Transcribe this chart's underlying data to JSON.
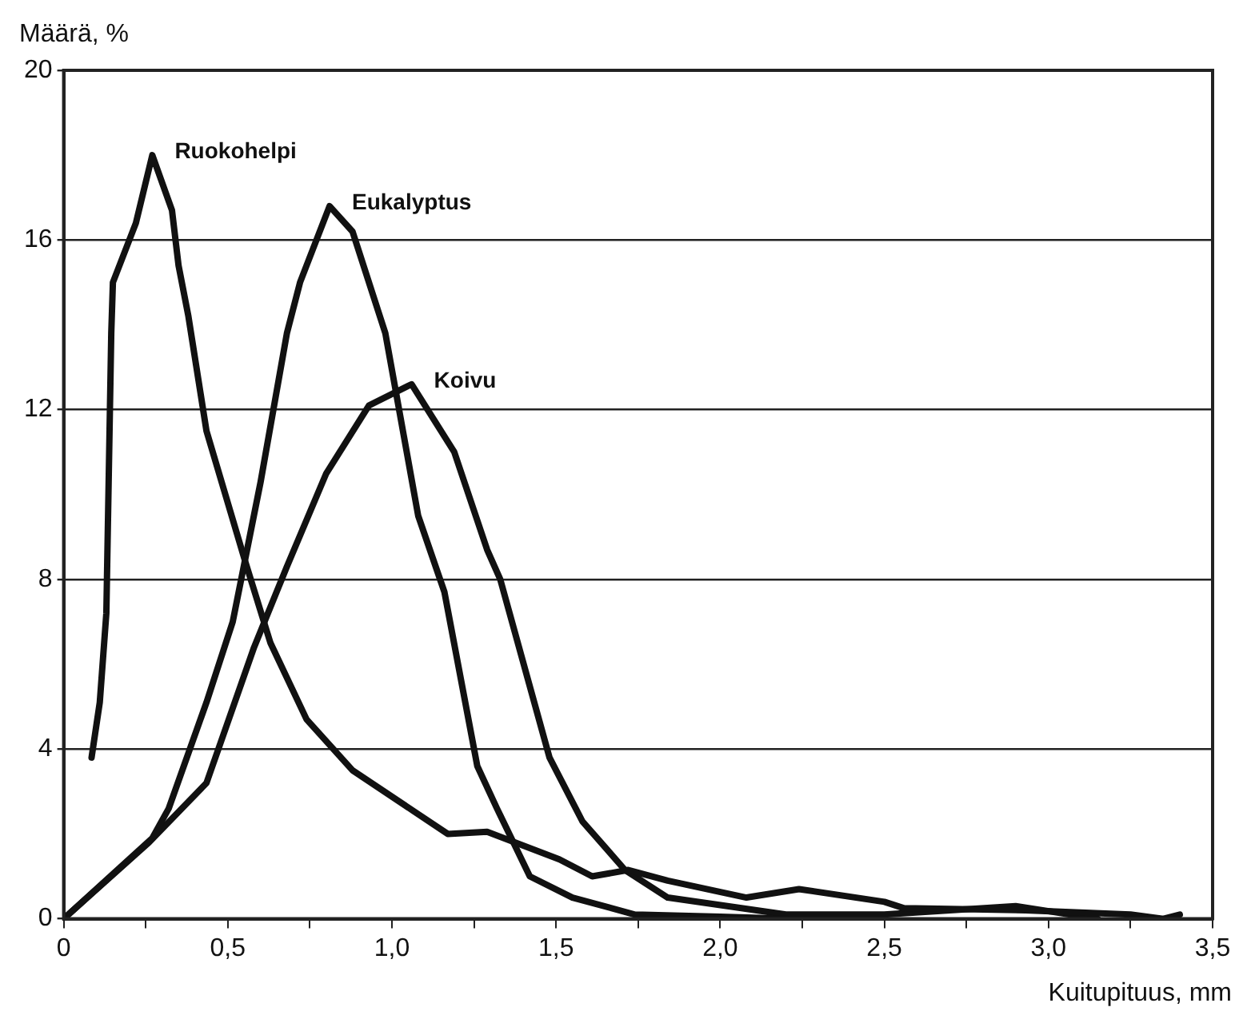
{
  "chart_data": {
    "type": "line",
    "xlabel": "Kuitupituus, mm",
    "ylabel": "Määrä, %",
    "xlim": [
      0,
      3.5
    ],
    "ylim": [
      0,
      20
    ],
    "xticks": [
      0,
      {
        "value": 0.25,
        "label": null
      },
      {
        "value": 0.5,
        "label": "0,5"
      },
      {
        "value": 0.75,
        "label": null
      },
      {
        "value": 1,
        "label": "1,0"
      },
      {
        "value": 1.25,
        "label": null
      },
      {
        "value": 1.5,
        "label": "1,5"
      },
      {
        "value": 1.75,
        "label": null
      },
      {
        "value": 2,
        "label": "2,0"
      },
      {
        "value": 2.25,
        "label": null
      },
      {
        "value": 2.5,
        "label": "2,5"
      },
      {
        "value": 2.75,
        "label": null
      },
      {
        "value": 3,
        "label": "3,0"
      },
      {
        "value": 3.25,
        "label": null
      },
      {
        "value": 3.5,
        "label": "3,5"
      }
    ],
    "yticks": [
      0,
      4,
      8,
      12,
      16,
      20
    ],
    "grid": "y",
    "legend": false,
    "marker": "none",
    "line_style": "solid",
    "series": [
      {
        "name": "Ruokohelpi",
        "color": "#111111",
        "x": [
          0.085,
          0.11,
          0.13,
          0.145,
          0.15,
          0.22,
          0.27,
          0.33,
          0.35,
          0.38,
          0.435,
          0.55,
          0.63,
          0.74,
          0.88,
          1.17,
          1.29,
          1.51,
          1.61,
          1.72,
          1.84,
          2.08,
          2.24,
          2.5,
          2.56,
          2.93,
          3.25,
          3.35,
          3.4
        ],
        "values": [
          3.8,
          5.1,
          7.2,
          13.8,
          15,
          16.4,
          18,
          16.7,
          15.4,
          14.2,
          11.5,
          8.5,
          6.5,
          4.7,
          3.5,
          2,
          2.05,
          1.4,
          1,
          1.15,
          0.9,
          0.5,
          0.7,
          0.4,
          0.25,
          0.2,
          0.1,
          0,
          0.1
        ]
      },
      {
        "name": "Eukalyptus",
        "color": "#111111",
        "x": [
          0,
          0.27,
          0.32,
          0.435,
          0.515,
          0.6,
          0.68,
          0.72,
          0.81,
          0.88,
          0.98,
          1.08,
          1.16,
          1.26,
          1.32,
          1.42,
          1.55,
          1.74,
          2,
          2.2
        ],
        "values": [
          0,
          1.9,
          2.6,
          5.1,
          7,
          10.3,
          13.8,
          15,
          16.8,
          16.2,
          13.8,
          9.5,
          7.7,
          3.6,
          2.6,
          1,
          0.5,
          0.1,
          0.05,
          0
        ]
      },
      {
        "name": "Koivu",
        "color": "#111111",
        "x": [
          0,
          0.26,
          0.435,
          0.58,
          0.68,
          0.8,
          0.93,
          1.06,
          1.19,
          1.29,
          1.33,
          1.48,
          1.58,
          1.71,
          1.84,
          2.2,
          2.5,
          2.9,
          3.15
        ],
        "values": [
          0,
          1.8,
          3.2,
          6.4,
          8.3,
          10.5,
          12.1,
          12.6,
          11,
          8.7,
          8,
          3.8,
          2.3,
          1.15,
          0.5,
          0.1,
          0.1,
          0.3,
          0
        ]
      }
    ]
  }
}
